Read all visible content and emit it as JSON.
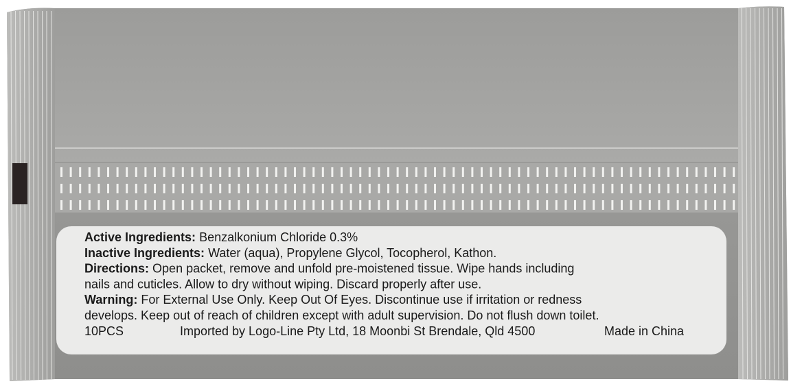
{
  "label": {
    "sections": [
      {
        "heading": "Active Ingredients:",
        "lines": [
          "Benzalkonium Chloride 0.3%"
        ]
      },
      {
        "heading": "Inactive Ingredients:",
        "lines": [
          "Water (aqua), Propylene Glycol, Tocopherol, Kathon."
        ]
      },
      {
        "heading": "Directions:",
        "lines": [
          "Open packet, remove and unfold pre-moistened tissue. Wipe hands including",
          "nails and cuticles. Allow to dry without wiping. Discard properly after use."
        ]
      },
      {
        "heading": "Warning:",
        "lines": [
          "For External Use Only. Keep Out Of Eyes. Discontinue use if irritation or redness",
          "develops. Keep out of reach of children except with adult supervision. Do not flush down toilet."
        ]
      }
    ],
    "footer": {
      "count": "10PCS",
      "importer": "Imported by Logo-Line Pty Ltd, 18 Moonbi St Brendale, Qld 4500",
      "origin": "Made in China"
    }
  }
}
